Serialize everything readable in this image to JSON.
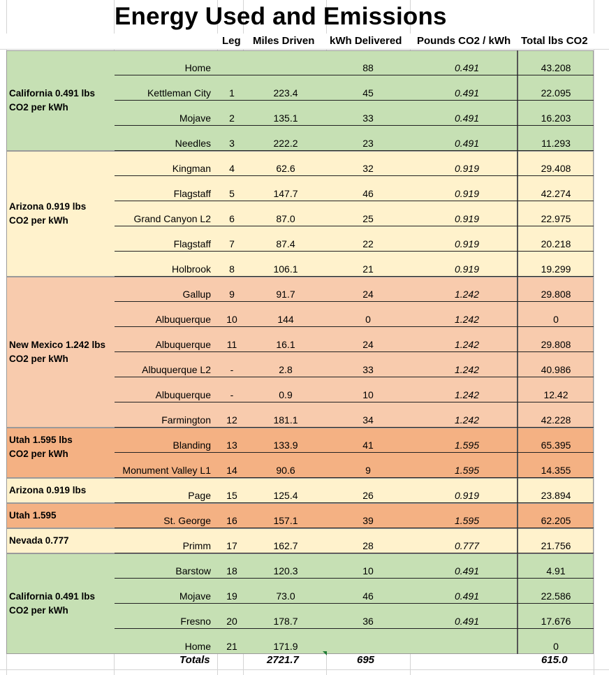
{
  "title": "Energy Used and Emissions",
  "headers": {
    "leg": "Leg",
    "miles": "Miles Driven",
    "kwh": "kWh Delivered",
    "rate": "Pounds CO2 / kWh",
    "total": "Total lbs CO2"
  },
  "colors": {
    "california": "#c6e0b4",
    "arizona": "#fff2cc",
    "new_mexico": "#f8cbad",
    "utah": "#f4b183",
    "nevada": "#fff2cc"
  },
  "regions": [
    "California 0.491 lbs\nCO2 per kWh",
    "Arizona 0.919 lbs\nCO2 per kWh",
    "New Mexico 1.242 lbs\nCO2 per kWh",
    "Utah 1.595 lbs\nCO2 per kWh",
    "Arizona 0.919 lbs",
    "Utah 1.595",
    "Nevada 0.777",
    "California 0.491 lbs\nCO2 per kWh"
  ],
  "rows": [
    {
      "city": "Home",
      "leg": "",
      "miles": "",
      "kwh": "88",
      "rate": "0.491",
      "total": "43.208"
    },
    {
      "city": "Kettleman City",
      "leg": "1",
      "miles": "223.4",
      "kwh": "45",
      "rate": "0.491",
      "total": "22.095"
    },
    {
      "city": "Mojave",
      "leg": "2",
      "miles": "135.1",
      "kwh": "33",
      "rate": "0.491",
      "total": "16.203"
    },
    {
      "city": "Needles",
      "leg": "3",
      "miles": "222.2",
      "kwh": "23",
      "rate": "0.491",
      "total": "11.293"
    },
    {
      "city": "Kingman",
      "leg": "4",
      "miles": "62.6",
      "kwh": "32",
      "rate": "0.919",
      "total": "29.408"
    },
    {
      "city": "Flagstaff",
      "leg": "5",
      "miles": "147.7",
      "kwh": "46",
      "rate": "0.919",
      "total": "42.274"
    },
    {
      "city": "Grand Canyon L2",
      "leg": "6",
      "miles": "87.0",
      "kwh": "25",
      "rate": "0.919",
      "total": "22.975"
    },
    {
      "city": "Flagstaff",
      "leg": "7",
      "miles": "87.4",
      "kwh": "22",
      "rate": "0.919",
      "total": "20.218"
    },
    {
      "city": "Holbrook",
      "leg": "8",
      "miles": "106.1",
      "kwh": "21",
      "rate": "0.919",
      "total": "19.299"
    },
    {
      "city": "Gallup",
      "leg": "9",
      "miles": "91.7",
      "kwh": "24",
      "rate": "1.242",
      "total": "29.808"
    },
    {
      "city": "Albuquerque",
      "leg": "10",
      "miles": "144",
      "kwh": "0",
      "rate": "1.242",
      "total": "0"
    },
    {
      "city": "Albuquerque",
      "leg": "11",
      "miles": "16.1",
      "kwh": "24",
      "rate": "1.242",
      "total": "29.808"
    },
    {
      "city": "Albuquerque L2",
      "leg": "-",
      "miles": "2.8",
      "kwh": "33",
      "rate": "1.242",
      "total": "40.986"
    },
    {
      "city": "Albuquerque",
      "leg": "-",
      "miles": "0.9",
      "kwh": "10",
      "rate": "1.242",
      "total": "12.42"
    },
    {
      "city": "Farmington",
      "leg": "12",
      "miles": "181.1",
      "kwh": "34",
      "rate": "1.242",
      "total": "42.228"
    },
    {
      "city": "Blanding",
      "leg": "13",
      "miles": "133.9",
      "kwh": "41",
      "rate": "1.595",
      "total": "65.395"
    },
    {
      "city": "Monument Valley L1",
      "leg": "14",
      "miles": "90.6",
      "kwh": "9",
      "rate": "1.595",
      "total": "14.355"
    },
    {
      "city": "Page",
      "leg": "15",
      "miles": "125.4",
      "kwh": "26",
      "rate": "0.919",
      "total": "23.894"
    },
    {
      "city": "St. George",
      "leg": "16",
      "miles": "157.1",
      "kwh": "39",
      "rate": "1.595",
      "total": "62.205"
    },
    {
      "city": "Primm",
      "leg": "17",
      "miles": "162.7",
      "kwh": "28",
      "rate": "0.777",
      "total": "21.756"
    },
    {
      "city": "Barstow",
      "leg": "18",
      "miles": "120.3",
      "kwh": "10",
      "rate": "0.491",
      "total": "4.91"
    },
    {
      "city": "Mojave",
      "leg": "19",
      "miles": "73.0",
      "kwh": "46",
      "rate": "0.491",
      "total": "22.586"
    },
    {
      "city": "Fresno",
      "leg": "20",
      "miles": "178.7",
      "kwh": "36",
      "rate": "0.491",
      "total": "17.676"
    },
    {
      "city": "Home",
      "leg": "21",
      "miles": "171.9",
      "kwh": "",
      "rate": "",
      "total": "0"
    }
  ],
  "totals": {
    "label": "Totals",
    "miles": "2721.7",
    "kwh": "695",
    "total": "615.0"
  }
}
